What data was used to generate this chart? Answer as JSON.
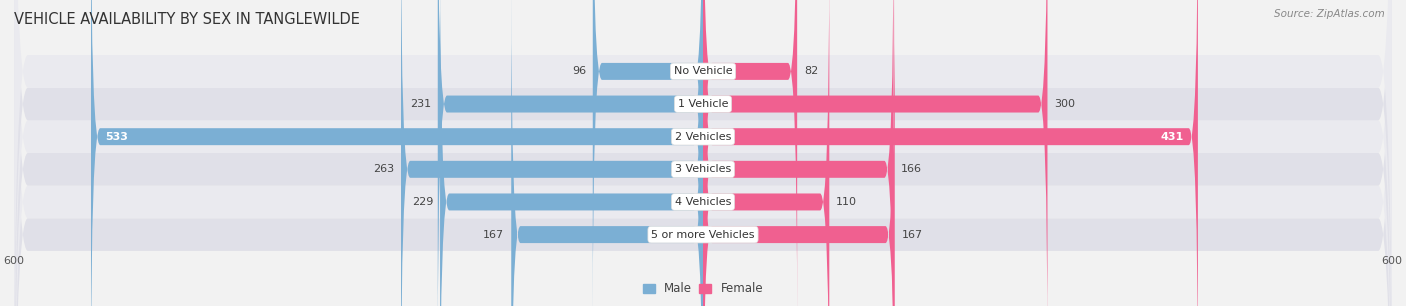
{
  "title": "VEHICLE AVAILABILITY BY SEX IN TANGLEWILDE",
  "source": "Source: ZipAtlas.com",
  "categories": [
    "5 or more Vehicles",
    "4 Vehicles",
    "3 Vehicles",
    "2 Vehicles",
    "1 Vehicle",
    "No Vehicle"
  ],
  "male_values": [
    167,
    229,
    263,
    533,
    231,
    96
  ],
  "female_values": [
    167,
    110,
    166,
    431,
    300,
    82
  ],
  "male_color": "#7bafd4",
  "female_color": "#f06090",
  "male_label": "Male",
  "female_label": "Female",
  "xlim": 600,
  "bar_height": 0.52,
  "background_color": "#f2f2f2",
  "row_bg_colors": [
    "#e0e0e8",
    "#eaeaef",
    "#e0e0e8",
    "#eaeaef",
    "#e0e0e8",
    "#eaeaef"
  ],
  "title_fontsize": 10.5,
  "label_fontsize": 8,
  "value_fontsize": 8,
  "axis_fontsize": 8,
  "inside_threshold": 350
}
